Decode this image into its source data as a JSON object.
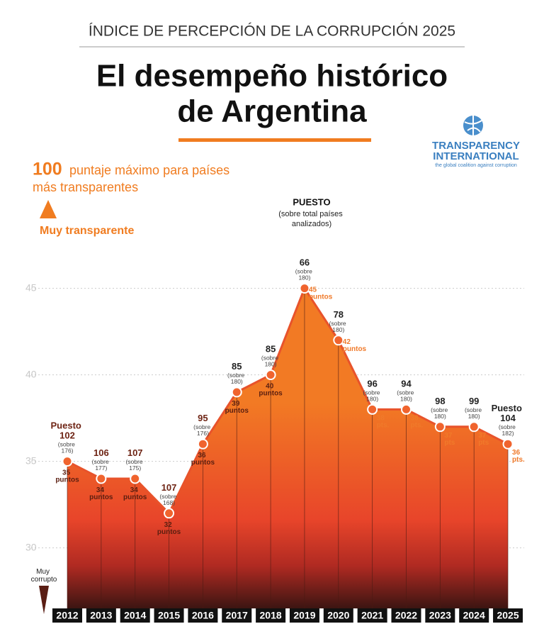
{
  "header": "ÍNDICE DE PERCEPCIÓN DE LA CORRUPCIÓN 2025",
  "title_lines": [
    "El desempeño histórico",
    "de Argentina"
  ],
  "logo": {
    "name_lines": [
      "TRANSPARENCY",
      "INTERNATIONAL"
    ],
    "tagline": "the global coalition against corruption"
  },
  "top_note": {
    "number": "100",
    "text": "puntaje máximo para países más transparentes",
    "label": "Muy transparente"
  },
  "bottom_label": "Muy corrupto",
  "rank_header": {
    "title": "PUESTO",
    "note": "(sobre total países analizados)"
  },
  "chart_data": {
    "type": "area",
    "categories": [
      "2012",
      "2013",
      "2014",
      "2015",
      "2016",
      "2017",
      "2018",
      "2019",
      "2020",
      "2021",
      "2022",
      "2023",
      "2024",
      "2025"
    ],
    "values": [
      35,
      34,
      34,
      32,
      36,
      39,
      40,
      45,
      42,
      38,
      38,
      37,
      37,
      36
    ],
    "value_labels": [
      "35 puntos",
      "34 puntos",
      "34 puntos",
      "32 puntos",
      "36 puntos",
      "39 puntos",
      "40 puntos",
      "45 puntos",
      "42 puntos",
      "38 pts.",
      "38 pts.",
      "37 pts",
      "37 pts",
      "36 pts."
    ],
    "rank_labels": [
      "Puesto 102",
      "106",
      "107",
      "107",
      "95",
      "85",
      "85",
      "66",
      "78",
      "96",
      "94",
      "98",
      "99",
      "Puesto 104"
    ],
    "rank_notes": [
      "(sobre 176)",
      "(sobre 177)",
      "(sobre 175)",
      "(sobre 168)",
      "(sobre 176)",
      "(sobre 180)",
      "(sobre 180)",
      "(sobre 180)",
      "(sobre 180)",
      "(sobre 180)",
      "(sobre 180)",
      "(sobre 180)",
      "(sobre 180)",
      "(sobre 182)"
    ],
    "color": "#e8532b",
    "ylim": [
      26.5,
      48
    ],
    "yticks": [
      30,
      35,
      40,
      45
    ],
    "grid": true
  }
}
